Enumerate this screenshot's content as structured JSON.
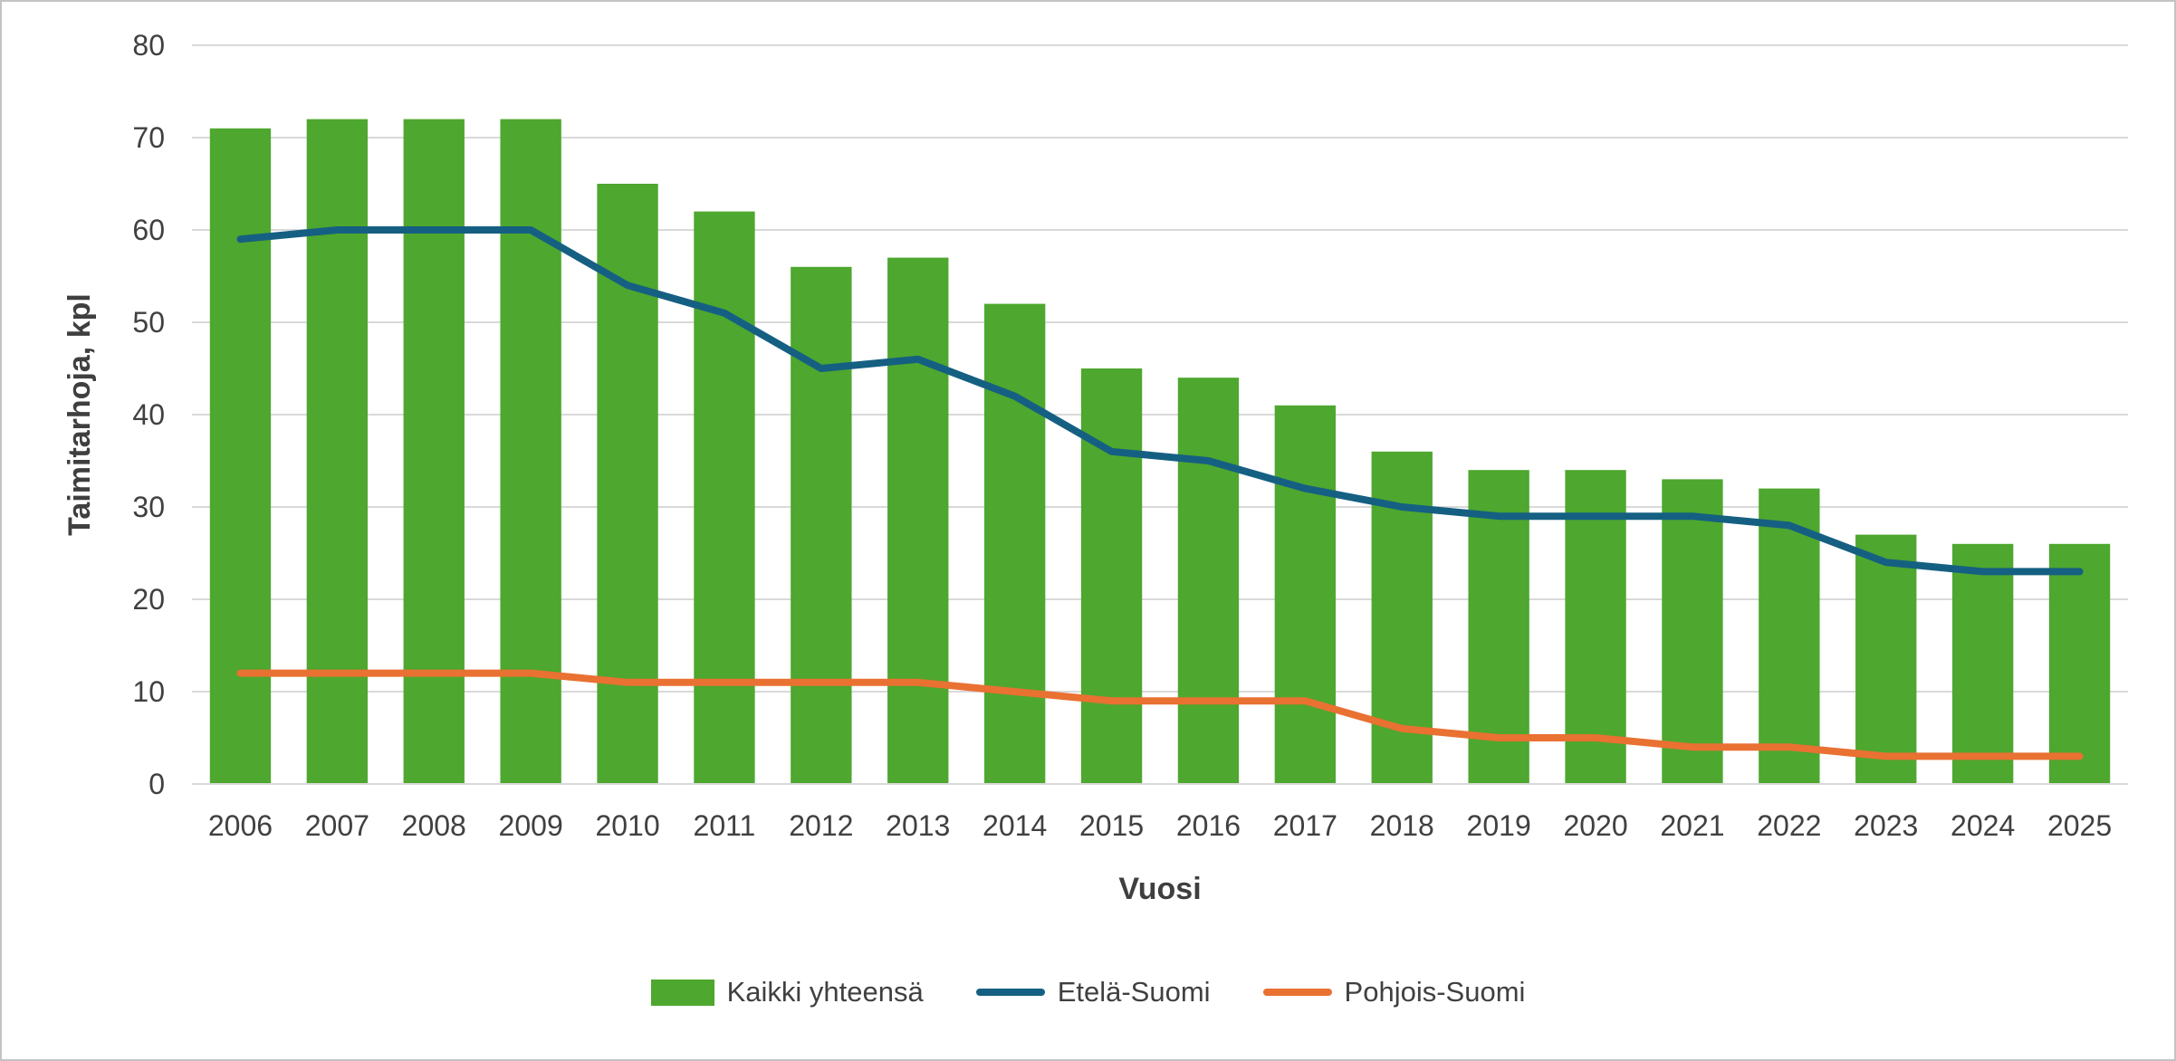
{
  "chart_data": {
    "type": "bar+line",
    "title": "",
    "xlabel": "Vuosi",
    "ylabel": "Taimitarhoja, kpl",
    "ylim": [
      0,
      80
    ],
    "y_ticks": [
      0,
      10,
      20,
      30,
      40,
      50,
      60,
      70,
      80
    ],
    "grid": "horizontal",
    "legend_position": "bottom",
    "categories": [
      "2006",
      "2007",
      "2008",
      "2009",
      "2010",
      "2011",
      "2012",
      "2013",
      "2014",
      "2015",
      "2016",
      "2017",
      "2018",
      "2019",
      "2020",
      "2021",
      "2022",
      "2023",
      "2024",
      "2025"
    ],
    "series": [
      {
        "name": "Kaikki yhteensä",
        "type": "bar",
        "color": "#4EA72E",
        "values": [
          71,
          72,
          72,
          72,
          65,
          62,
          56,
          57,
          52,
          45,
          44,
          41,
          36,
          34,
          34,
          33,
          32,
          27,
          26,
          26
        ]
      },
      {
        "name": "Etelä-Suomi",
        "type": "line",
        "color": "#156082",
        "values": [
          59,
          60,
          60,
          60,
          54,
          51,
          45,
          46,
          42,
          36,
          35,
          32,
          30,
          29,
          29,
          29,
          28,
          24,
          23,
          23
        ]
      },
      {
        "name": "Pohjois-Suomi",
        "type": "line",
        "color": "#E97132",
        "values": [
          12,
          12,
          12,
          12,
          11,
          11,
          11,
          11,
          10,
          9,
          9,
          9,
          6,
          5,
          5,
          4,
          4,
          3,
          3,
          3
        ]
      }
    ],
    "colors": {
      "gridline": "#D9D9D9",
      "axis_line": "#D9D9D9",
      "tick_text": "#404040",
      "frame_border": "#C3C3C3"
    }
  }
}
